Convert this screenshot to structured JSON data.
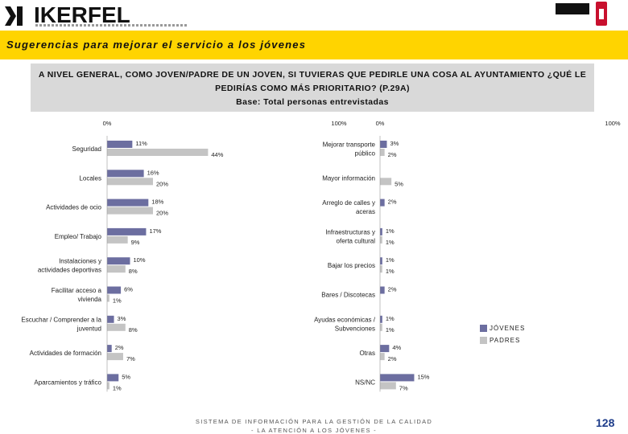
{
  "header": {
    "logo_text": "IKERFEL",
    "title": "Sugerencias para mejorar el servicio a los jóvenes"
  },
  "question": {
    "line1": "A NIVEL GENERAL, COMO JOVEN/PADRE DE UN JOVEN, SI TUVIERAS QUE PEDIRLE UNA COSA AL AYUNTAMIENTO ¿QUÉ LE",
    "line2": "PEDIRÍAS COMO MÁS PRIORITARIO? (P.29A)",
    "line3": "Base: Total personas entrevistadas"
  },
  "legend": {
    "jovenes": "JÓVENES",
    "padres": "PADRES"
  },
  "colors": {
    "jovenes": "#6c6ea0",
    "padres": "#c4c4c4",
    "title_bg": "#ffd400",
    "question_bg": "#d9d9d9",
    "page_number": "#1d3c8a"
  },
  "footer": {
    "line1": "SISTEMA DE INFORMACIÓN PARA LA GESTIÓN DE LA CALIDAD",
    "line2": "- LA ATENCIÓN A LOS JÓVENES -",
    "page_number": "128"
  },
  "chart_data": [
    {
      "type": "bar",
      "orientation": "horizontal",
      "axis_min_label": "0%",
      "axis_max_label": "100%",
      "xlim": [
        0,
        100
      ],
      "categories": [
        "Seguridad",
        "Locales",
        "Actividades de ocio",
        "Empleo/ Trabajo",
        "Instalaciones y actividades deportivas",
        "Facilitar acceso a vivienda",
        "Escuchar / Comprender a la juventud",
        "Actividades de formación",
        "Aparcamientos y tráfico"
      ],
      "series": [
        {
          "name": "JÓVENES",
          "values": [
            11,
            16,
            18,
            17,
            10,
            6,
            3,
            2,
            5
          ]
        },
        {
          "name": "PADRES",
          "values": [
            44,
            20,
            20,
            9,
            8,
            1,
            8,
            7,
            1
          ]
        }
      ]
    },
    {
      "type": "bar",
      "orientation": "horizontal",
      "axis_min_label": "0%",
      "axis_max_label": "100%",
      "xlim": [
        0,
        100
      ],
      "categories": [
        "Mejorar transporte público",
        "Mayor información",
        "Arreglo de calles y aceras",
        "Infraestructuras y oferta cultural",
        "Bajar los precios",
        "Bares / Discotecas",
        "Ayudas económicas / Subvenciones",
        "Otras",
        "NS/NC"
      ],
      "series": [
        {
          "name": "JÓVENES",
          "values": [
            3,
            0,
            2,
            1,
            1,
            2,
            1,
            4,
            15
          ]
        },
        {
          "name": "PADRES",
          "values": [
            2,
            5,
            0,
            1,
            1,
            0,
            1,
            2,
            7
          ]
        }
      ]
    }
  ]
}
